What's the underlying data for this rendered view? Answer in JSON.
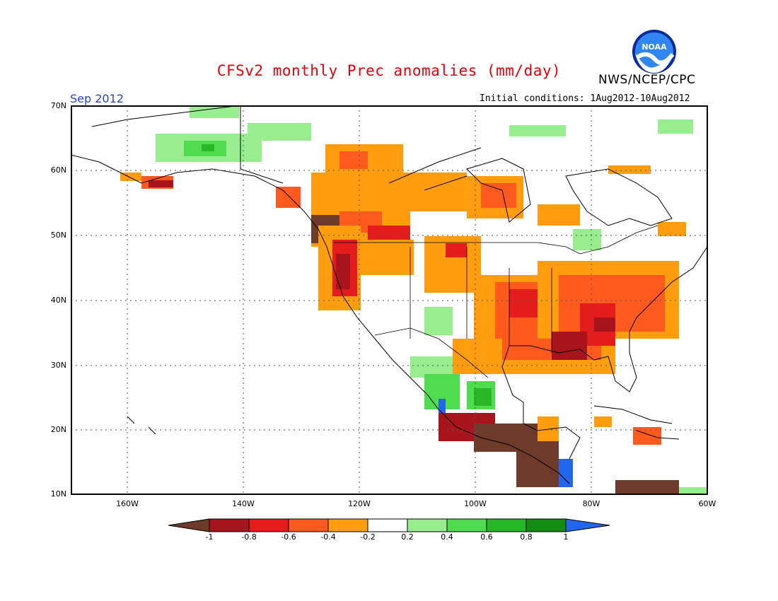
{
  "title": "CFSv2 monthly Prec anomalies (mm/day)",
  "org": "NWS/NCEP/CPC",
  "logo_text": "NOAA",
  "month": "Sep 2012",
  "initial_conditions": "Initial conditions: 1Aug2012-10Aug2012",
  "map": {
    "lon_range": [
      -170,
      -60
    ],
    "lat_range": [
      10,
      70
    ],
    "lat_labels": [
      "70N",
      "60N",
      "50N",
      "40N",
      "30N",
      "20N",
      "10N"
    ],
    "lon_labels": [
      "160W",
      "140W",
      "120W",
      "100W",
      "80W",
      "60W"
    ],
    "grid": "dotted"
  },
  "colorbar": {
    "labels": [
      "-1",
      "-0.8",
      "-0.6",
      "-0.4",
      "-0.2",
      "0.2",
      "0.4",
      "0.6",
      "0.8",
      "1"
    ],
    "colors": {
      "lt_-1": "#6e3b2a",
      "-1_-0.8": "#a8141b",
      "-0.8_-0.6": "#e41c1c",
      "-0.6_-0.4": "#ff5a1e",
      "-0.4_-0.2": "#ff9d0e",
      "-0.2_0.2": "#ffffff",
      "0.2_0.4": "#98ee8e",
      "0.4_0.6": "#4fdc4f",
      "0.6_0.8": "#27b827",
      "0.8_1": "#128c12",
      "gt_1": "#2266ee"
    }
  }
}
